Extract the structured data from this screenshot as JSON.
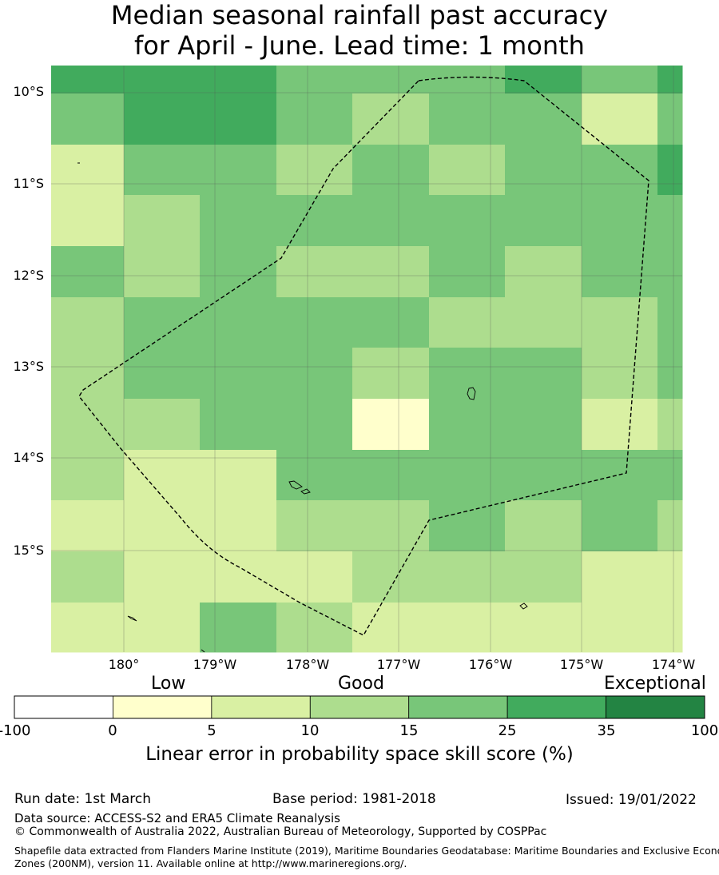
{
  "title": {
    "line1": "Median seasonal rainfall past accuracy",
    "line2": "for April - June. Lead time: 1 month"
  },
  "map": {
    "lat_labels": [
      "10°S",
      "11°S",
      "12°S",
      "13°S",
      "14°S",
      "15°S"
    ],
    "lon_labels": [
      "180°",
      "179°W",
      "178°W",
      "177°W",
      "176°W",
      "175°W",
      "174°W"
    ],
    "grid_rows": [
      [
        "c35",
        "c35",
        "c35",
        "c25",
        "c25",
        "c25",
        "c35",
        "c25",
        "c35"
      ],
      [
        "c25",
        "c35",
        "c35",
        "c25",
        "c15",
        "c25",
        "c25",
        "c10",
        "c25"
      ],
      [
        "c10",
        "c25",
        "c25",
        "c15",
        "c25",
        "c15",
        "c25",
        "c25",
        "c35"
      ],
      [
        "c10",
        "c15",
        "c25",
        "c25",
        "c25",
        "c25",
        "c25",
        "c25",
        "c25"
      ],
      [
        "c25",
        "c15",
        "c25",
        "c15",
        "c15",
        "c25",
        "c15",
        "c25",
        "c25"
      ],
      [
        "c15",
        "c25",
        "c25",
        "c25",
        "c25",
        "c15",
        "c15",
        "c15",
        "c25"
      ],
      [
        "c15",
        "c25",
        "c25",
        "c25",
        "c15",
        "c25",
        "c25",
        "c15",
        "c25"
      ],
      [
        "c15",
        "c15",
        "c25",
        "c25",
        "c5",
        "c25",
        "c25",
        "c10",
        "c15"
      ],
      [
        "c15",
        "c10",
        "c10",
        "c25",
        "c25",
        "c25",
        "c25",
        "c25",
        "c25"
      ],
      [
        "c10",
        "c10",
        "c10",
        "c15",
        "c15",
        "c25",
        "c15",
        "c25",
        "c15"
      ],
      [
        "c15",
        "c10",
        "c10",
        "c10",
        "c15",
        "c15",
        "c15",
        "c10",
        "c10"
      ],
      [
        "c10",
        "c10",
        "c25",
        "c15",
        "c10",
        "c10",
        "c10",
        "c10",
        "c10"
      ]
    ]
  },
  "colors": {
    "c0": "#ffffff",
    "c5": "#ffffcc",
    "c10": "#d9f0a3",
    "c15": "#addd8e",
    "c25": "#78c679",
    "c35": "#41ab5d",
    "c100": "#238443"
  },
  "legend": {
    "low": "Low",
    "good": "Good",
    "exceptional": "Exceptional",
    "ticks": [
      "-100",
      "0",
      "5",
      "10",
      "15",
      "25",
      "35",
      "100"
    ],
    "bins": [
      "c0",
      "c5",
      "c10",
      "c15",
      "c25",
      "c35",
      "c100"
    ],
    "title": "Linear error in probability space skill score (%)"
  },
  "footer": {
    "run_date": "Run date: 1st March",
    "base_period": "Base period: 1981-2018",
    "issued": "Issued: 19/01/2022",
    "data_source": "Data source: ACCESS-S2 and ERA5 Climate Reanalysis",
    "copyright": "© Commonwealth of Australia 2022, Australian Bureau of Meteorology, Supported by COSPPac",
    "shapefile_line1": "Shapefile data extracted from Flanders Marine Institute (2019), Maritime Boundaries Geodatabase: Maritime Boundaries and Exclusive Economic",
    "shapefile_line2": "Zones (200NM), version 11. Available online at http://www.marineregions.org/."
  }
}
